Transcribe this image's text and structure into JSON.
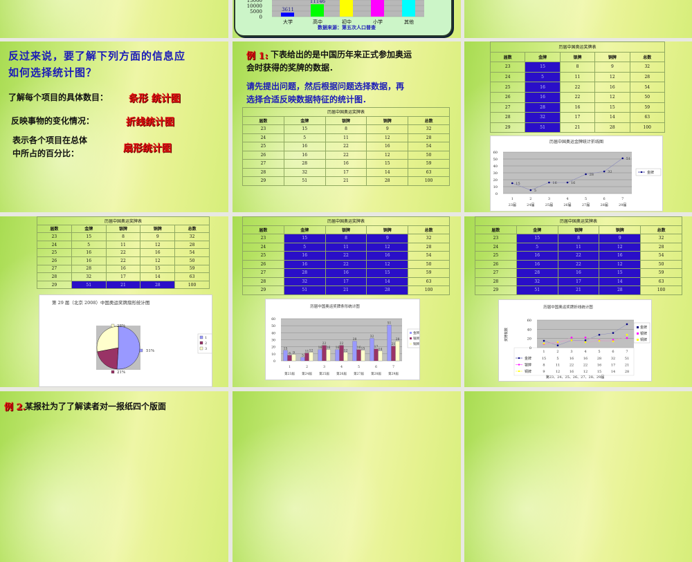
{
  "medal_table": {
    "title": "历届中国奥运奖牌表",
    "headers": [
      "届数",
      "金牌",
      "银牌",
      "铜牌",
      "总数"
    ],
    "rows": [
      [
        "23",
        "15",
        "8",
        "9",
        "32"
      ],
      [
        "24",
        "5",
        "11",
        "12",
        "28"
      ],
      [
        "25",
        "16",
        "22",
        "16",
        "54"
      ],
      [
        "26",
        "16",
        "22",
        "12",
        "50"
      ],
      [
        "27",
        "28",
        "16",
        "15",
        "59"
      ],
      [
        "28",
        "32",
        "17",
        "14",
        "63"
      ],
      [
        "29",
        "51",
        "21",
        "28",
        "100"
      ]
    ]
  },
  "slides": {
    "s2": {
      "title_line1": "反过来说，要了解下列方面的信息应",
      "title_line2": "如何选择统计图？",
      "q1": "了解每个项目的具体数目：",
      "a1": "条形 统计图",
      "q2": "反映事物的变化情况：",
      "a2": "折线统计图",
      "q3_line1": "表示各个项目在总体",
      "q3_line2": "中所占的百分比：",
      "a3": "扇形统计图"
    },
    "s3": {
      "label": "例 1:",
      "text_line1": "下表给出的是中国历年来正式参加奥运",
      "text_line2": "会时获得的奖牌的数据．",
      "blue_line1": "请先提出问题，然后根据问题选择数据，再",
      "blue_line2": "选择合适反映数据特征的统计图．"
    },
    "s10": {
      "label": "例 2.",
      "text": "某报社为了了解读者对一报纸四个版面"
    }
  },
  "colors": {
    "gold_bar": "#9999ff",
    "silver_bar": "#993366",
    "bronze_bar": "#ffffcc",
    "gold_line": "#000080",
    "silver_line": "#ff00ff",
    "bronze_line": "#ffff00",
    "highlight": "#2a0fc8",
    "title_blue": "#1a1ab8",
    "answer_red": "#e01010"
  },
  "chart_data": [
    {
      "type": "bar",
      "categories": [
        "大学",
        "高中",
        "初中",
        "小学",
        "其他"
      ],
      "data_labels": [
        "3611",
        "11146",
        "",
        "",
        ""
      ],
      "values": [
        3611,
        11146,
        null,
        null,
        null
      ],
      "colors": [
        "#0000ff",
        "#00ff00",
        "#ffff00",
        "#ff00ff",
        "#00ffff"
      ],
      "yticks": [
        "15000",
        "10000",
        "5000",
        "0"
      ],
      "source": "数据来源：第五次人口普查",
      "grid": true
    },
    {
      "type": "line",
      "title": "历届中国奥运金牌统计折线图",
      "x": [
        "1",
        "2",
        "3",
        "4",
        "5",
        "6",
        "7"
      ],
      "x_sub": [
        "23届",
        "24届",
        "25届",
        "26届",
        "27届",
        "28届",
        "29届"
      ],
      "series": [
        {
          "name": "金牌",
          "values": [
            15,
            5,
            16,
            16,
            28,
            32,
            51
          ]
        }
      ],
      "ylim": [
        0,
        60
      ],
      "yticks": [
        0,
        10,
        20,
        30,
        40,
        50,
        60
      ],
      "legend": "right",
      "grid": true
    },
    {
      "type": "pie",
      "title": "第 29 届（北京 2008）中国奥运奖牌扇形统计图",
      "values": [
        51,
        21,
        28
      ],
      "data_labels": [
        "51%",
        "21%",
        "28%"
      ],
      "legend": [
        "1",
        "2",
        "3"
      ],
      "legend_position": "right"
    },
    {
      "type": "bar",
      "title": "历届中国奥运奖牌条形统计图",
      "categories": [
        "1",
        "2",
        "3",
        "4",
        "5",
        "6",
        "7"
      ],
      "categories_sub": [
        "第23届",
        "第24届",
        "第25届",
        "第26届",
        "第27届",
        "第28届",
        "第29届"
      ],
      "series": [
        {
          "name": "金牌",
          "values": [
            15,
            5,
            16,
            16,
            28,
            32,
            51
          ]
        },
        {
          "name": "银牌",
          "values": [
            8,
            11,
            22,
            22,
            16,
            17,
            21
          ]
        },
        {
          "name": "铜牌",
          "values": [
            9,
            12,
            16,
            12,
            15,
            14,
            28
          ]
        }
      ],
      "ylim": [
        0,
        60
      ],
      "yticks": [
        0,
        10,
        20,
        30,
        40,
        50,
        60
      ],
      "legend": "right",
      "grid": true
    },
    {
      "type": "line",
      "title": "历届中国奥运奖牌折线统计图",
      "ylabel": "奖牌枚数",
      "xlabel": "第23、24、25、26、27、28、29届",
      "x": [
        "1",
        "2",
        "3",
        "4",
        "5",
        "6",
        "7"
      ],
      "series": [
        {
          "name": "金牌",
          "values": [
            15,
            5,
            16,
            16,
            28,
            32,
            51
          ]
        },
        {
          "name": "银牌",
          "values": [
            8,
            11,
            22,
            22,
            16,
            17,
            21
          ]
        },
        {
          "name": "铜牌",
          "values": [
            9,
            12,
            16,
            12,
            15,
            14,
            28
          ]
        }
      ],
      "ylim": [
        0,
        60
      ],
      "yticks": [
        0,
        20,
        40,
        60
      ],
      "legend": "right",
      "data_table": true,
      "grid": true
    }
  ]
}
